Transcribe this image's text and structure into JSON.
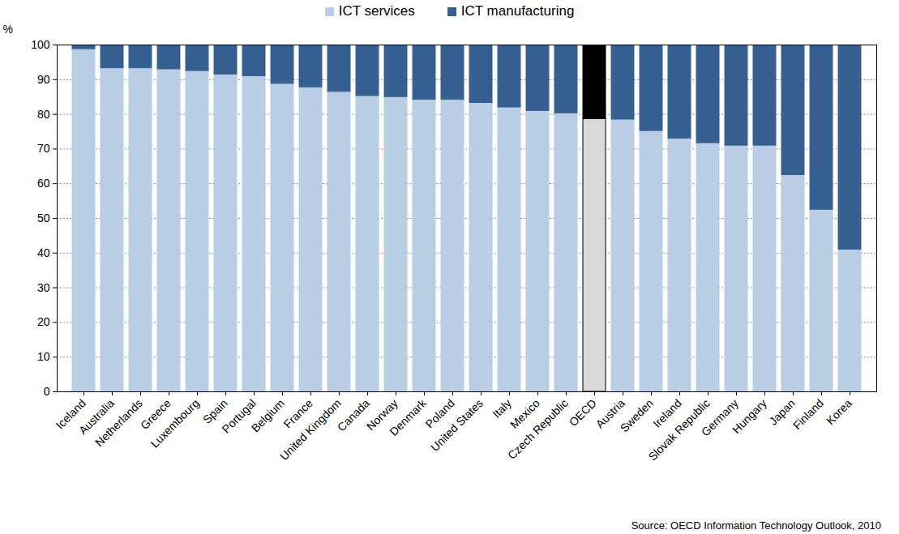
{
  "chart_data": {
    "type": "bar",
    "stacked": true,
    "caption": "Source: OECD Information Technology Outlook, 2010",
    "y_label": "%",
    "categories": [
      "Iceland",
      "Australia",
      "Netherlands",
      "Greece",
      "Luxembourg",
      "Spain",
      "Portugal",
      "Belgium",
      "France",
      "United Kingdom",
      "Canada",
      "Norway",
      "Denmark",
      "Poland",
      "United States",
      "Italy",
      "Mexico",
      "Czech Republic",
      "OECD",
      "Austria",
      "Sweden",
      "Ireland",
      "Slovak Republic",
      "Germany",
      "Hungary",
      "Japan",
      "Finland",
      "Korea"
    ],
    "series": [
      {
        "name": "ICT services",
        "color": "#b9cde5",
        "colors": [
          "#b9cde5",
          "#b9cde5",
          "#b9cde5",
          "#b9cde5",
          "#b9cde5",
          "#b9cde5",
          "#b9cde5",
          "#b9cde5",
          "#b9cde5",
          "#b9cde5",
          "#b9cde5",
          "#b9cde5",
          "#b9cde5",
          "#b9cde5",
          "#b9cde5",
          "#b9cde5",
          "#b9cde5",
          "#b9cde5",
          "#d9d9d9",
          "#b9cde5",
          "#b9cde5",
          "#b9cde5",
          "#b9cde5",
          "#b9cde5",
          "#b9cde5",
          "#b9cde5",
          "#b9cde5",
          "#b9cde5"
        ],
        "values": [
          98.8,
          93.3,
          93.3,
          93.0,
          92.5,
          91.5,
          91.0,
          88.8,
          87.8,
          86.5,
          85.3,
          85.0,
          84.2,
          84.2,
          83.3,
          82.0,
          81.0,
          80.3,
          78.7,
          78.5,
          75.2,
          73.0,
          71.7,
          71.0,
          71.0,
          62.5,
          52.5,
          41.0
        ]
      },
      {
        "name": "ICT manufacturing",
        "color": "#376092",
        "colors": [
          "#376092",
          "#376092",
          "#376092",
          "#376092",
          "#376092",
          "#376092",
          "#376092",
          "#376092",
          "#376092",
          "#376092",
          "#376092",
          "#376092",
          "#376092",
          "#376092",
          "#376092",
          "#376092",
          "#376092",
          "#376092",
          "#000000",
          "#376092",
          "#376092",
          "#376092",
          "#376092",
          "#376092",
          "#376092",
          "#376092",
          "#376092",
          "#376092"
        ],
        "values": [
          1.2,
          6.7,
          6.7,
          7.0,
          7.5,
          8.5,
          9.0,
          11.2,
          12.2,
          13.5,
          14.7,
          15.0,
          15.8,
          15.8,
          16.7,
          18.0,
          19.0,
          19.7,
          21.3,
          21.5,
          24.8,
          27.0,
          28.3,
          29.0,
          29.0,
          37.5,
          47.5,
          59.0
        ]
      }
    ],
    "ylim": [
      0,
      100
    ],
    "yticks": [
      0,
      10,
      20,
      30,
      40,
      50,
      60,
      70,
      80,
      90,
      100
    ],
    "grid": true,
    "legend": "top"
  }
}
